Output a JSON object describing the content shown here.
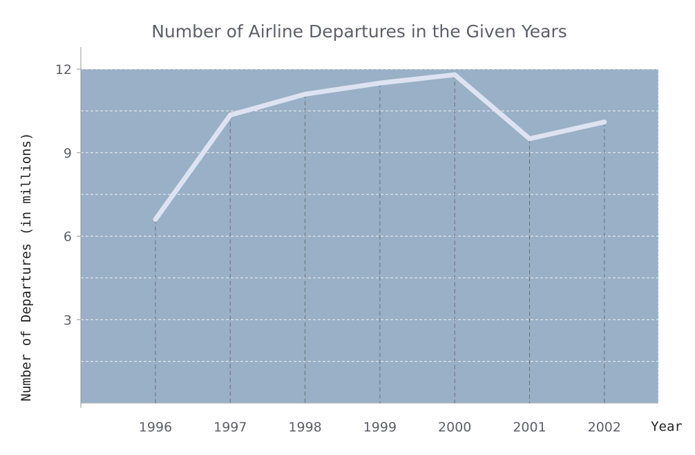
{
  "chart_data": {
    "type": "line",
    "title": "Number of Airline Departures in the Given Years",
    "xlabel": "Year",
    "ylabel": "Number of Departures (in millions)",
    "categories": [
      "1996",
      "1997",
      "1998",
      "1999",
      "2000",
      "2001",
      "2002"
    ],
    "values": [
      6.6,
      10.35,
      11.1,
      11.5,
      11.8,
      9.5,
      10.1
    ],
    "ylim": [
      0,
      12
    ],
    "yticks": [
      "3",
      "6",
      "9",
      "12"
    ],
    "grid": true,
    "colors": {
      "plot_background": "#99b0c6",
      "line": "#dde3f2"
    }
  }
}
